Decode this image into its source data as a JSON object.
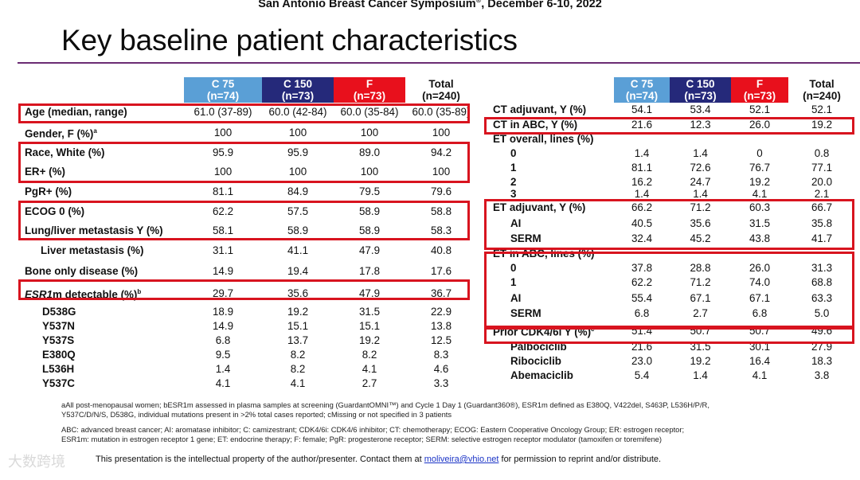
{
  "header": {
    "text": "San Antonio Breast Cancer Symposium",
    "reg": "®",
    "date": ", December 6-10, 2022"
  },
  "title": "Key baseline patient characteristics",
  "colors": {
    "c75": "#5a9fd6",
    "c150": "#25297a",
    "f": "#e8101c",
    "box": "#d8141f",
    "rule": "#6b2c73"
  },
  "columns": [
    {
      "name": "C 75",
      "n": "(n=74)"
    },
    {
      "name": "C 150",
      "n": "(n=73)"
    },
    {
      "name": "F",
      "n": "(n=73)"
    },
    {
      "name": "Total",
      "n": "(n=240)"
    }
  ],
  "left_rows": [
    {
      "label": "Age (median, range)",
      "v": [
        "61.0 (37-89)",
        "60.0 (42-84)",
        "60.0 (35-84)",
        "60.0 (35-89)"
      ]
    },
    {
      "label": "Gender, F (%)",
      "sup": "a",
      "v": [
        "100",
        "100",
        "100",
        "100"
      ]
    },
    {
      "label": "Race, White (%)",
      "v": [
        "95.9",
        "95.9",
        "89.0",
        "94.2"
      ]
    },
    {
      "label": "ER+ (%)",
      "v": [
        "100",
        "100",
        "100",
        "100"
      ]
    },
    {
      "label": "PgR+ (%)",
      "v": [
        "81.1",
        "84.9",
        "79.5",
        "79.6"
      ]
    },
    {
      "label": "ECOG 0 (%)",
      "v": [
        "62.2",
        "57.5",
        "58.9",
        "58.8"
      ]
    },
    {
      "label": "Lung/liver metastasis Y (%)",
      "v": [
        "58.1",
        "58.9",
        "58.9",
        "58.3"
      ]
    },
    {
      "label": "Liver metastasis (%)",
      "v": [
        "31.1",
        "41.1",
        "47.9",
        "40.8"
      ]
    },
    {
      "label": "Bone only disease (%)",
      "v": [
        "14.9",
        "19.4",
        "17.8",
        "17.6"
      ]
    },
    {
      "label_i": "ESR1",
      "label": "m detectable (%)",
      "sup": "b",
      "v": [
        "29.7",
        "35.6",
        "47.9",
        "36.7"
      ]
    },
    {
      "label": "D538G",
      "v": [
        "18.9",
        "19.2",
        "31.5",
        "22.9"
      ]
    },
    {
      "label": "Y537N",
      "v": [
        "14.9",
        "15.1",
        "15.1",
        "13.8"
      ]
    },
    {
      "label": "Y537S",
      "v": [
        "6.8",
        "13.7",
        "19.2",
        "12.5"
      ]
    },
    {
      "label": "E380Q",
      "v": [
        "9.5",
        "8.2",
        "8.2",
        "8.3"
      ]
    },
    {
      "label": "L536H",
      "v": [
        "1.4",
        "8.2",
        "4.1",
        "4.6"
      ]
    },
    {
      "label": "Y537C",
      "v": [
        "4.1",
        "4.1",
        "2.7",
        "3.3"
      ]
    }
  ],
  "right_rows": [
    {
      "label": "CT adjuvant, Y (%)",
      "v": [
        "54.1",
        "53.4",
        "52.1",
        "52.1"
      ]
    },
    {
      "label": "CT in ABC, Y (%)",
      "v": [
        "21.6",
        "12.3",
        "26.0",
        "19.2"
      ]
    },
    {
      "label": "ET overall, lines (%)",
      "v": [
        "",
        "",
        "",
        ""
      ]
    },
    {
      "label": "0",
      "v": [
        "1.4",
        "1.4",
        "0",
        "0.8"
      ]
    },
    {
      "label": "1",
      "v": [
        "81.1",
        "72.6",
        "76.7",
        "77.1"
      ]
    },
    {
      "label": "2",
      "v": [
        "16.2",
        "24.7",
        "19.2",
        "20.0"
      ]
    },
    {
      "label": "3",
      "v": [
        "1.4",
        "1.4",
        "4.1",
        "2.1"
      ]
    },
    {
      "label": "ET adjuvant, Y (%)",
      "v": [
        "66.2",
        "71.2",
        "60.3",
        "66.7"
      ]
    },
    {
      "label": "AI",
      "v": [
        "40.5",
        "35.6",
        "31.5",
        "35.8"
      ]
    },
    {
      "label": "SERM",
      "v": [
        "32.4",
        "45.2",
        "43.8",
        "41.7"
      ]
    },
    {
      "label": "ET in ABC, lines (%)",
      "v": [
        "",
        "",
        "",
        ""
      ]
    },
    {
      "label": "0",
      "v": [
        "37.8",
        "28.8",
        "26.0",
        "31.3"
      ]
    },
    {
      "label": "1",
      "v": [
        "62.2",
        "71.2",
        "74.0",
        "68.8"
      ]
    },
    {
      "label": "AI",
      "v": [
        "55.4",
        "67.1",
        "67.1",
        "63.3"
      ]
    },
    {
      "label": "SERM",
      "v": [
        "6.8",
        "2.7",
        "6.8",
        "5.0"
      ]
    },
    {
      "label": "Prior CDK4/6i Y (%)",
      "sup": "c",
      "v": [
        "51.4",
        "50.7",
        "50.7",
        "49.6"
      ]
    },
    {
      "label": "Palbociclib",
      "v": [
        "21.6",
        "31.5",
        "30.1",
        "27.9"
      ]
    },
    {
      "label": "Ribociclib",
      "v": [
        "23.0",
        "19.2",
        "16.4",
        "18.3"
      ]
    },
    {
      "label": "Abemaciclib",
      "v": [
        "5.4",
        "1.4",
        "4.1",
        "3.8"
      ]
    }
  ],
  "footnotes": {
    "line1": "aAll post-menopausal women; bESR1m assessed in plasma samples at screening (GuardantOMNI™) and Cycle 1 Day 1 (Guardant360®), ESR1m defined as E380Q, V422del, S463P, L536H/P/R,",
    "line2": "Y537C/D/N/S, D538G, individual mutations present in >2% total cases reported; cMissing or not specified in 3 patients",
    "abbr1": "ABC: advanced breast cancer; AI: aromatase inhibitor; C: camizestrant; CDK4/6i: CDK4/6 inhibitor; CT: chemotherapy; ECOG: Eastern Cooperative Oncology Group; ER: estrogen receptor;",
    "abbr2": "ESR1m: mutation in estrogen receptor 1 gene; ET: endocrine therapy; F: female; PgR: progesterone receptor; SERM: selective estrogen receptor modulator (tamoxifen or toremifene)"
  },
  "bottom": {
    "text": "This presentation is the intellectual property of the author/presenter. Contact them at ",
    "email": "moliveira@vhio.net",
    "text2": " for permission to reprint and/or distribute."
  },
  "watermark": "大数跨境"
}
